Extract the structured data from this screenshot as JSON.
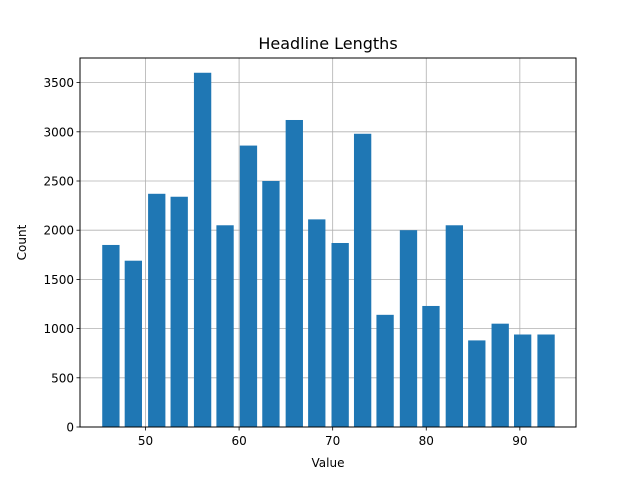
{
  "chart_data": {
    "type": "bar",
    "title": "Headline Lengths",
    "xlabel": "Value",
    "ylabel": "Count",
    "x": [
      46.3,
      48.7,
      51.2,
      53.6,
      56.1,
      58.5,
      61.0,
      63.4,
      65.9,
      68.3,
      70.8,
      73.2,
      75.6,
      78.1,
      80.5,
      83.0,
      85.4,
      87.9,
      90.3,
      92.8
    ],
    "values": [
      1850,
      1690,
      2370,
      2340,
      3600,
      2050,
      2860,
      2500,
      3120,
      2110,
      1870,
      2980,
      1140,
      2000,
      1230,
      2050,
      880,
      1050,
      940,
      940
    ],
    "bar_width": 1.85,
    "xlim": [
      43.0,
      96.0
    ],
    "ylim": [
      0,
      3750
    ],
    "xticks": [
      50,
      60,
      70,
      80,
      90
    ],
    "yticks": [
      0,
      500,
      1000,
      1500,
      2000,
      2500,
      3000,
      3500
    ],
    "grid": true,
    "bar_color": "#1f77b4",
    "grid_color": "#b0b0b0"
  }
}
